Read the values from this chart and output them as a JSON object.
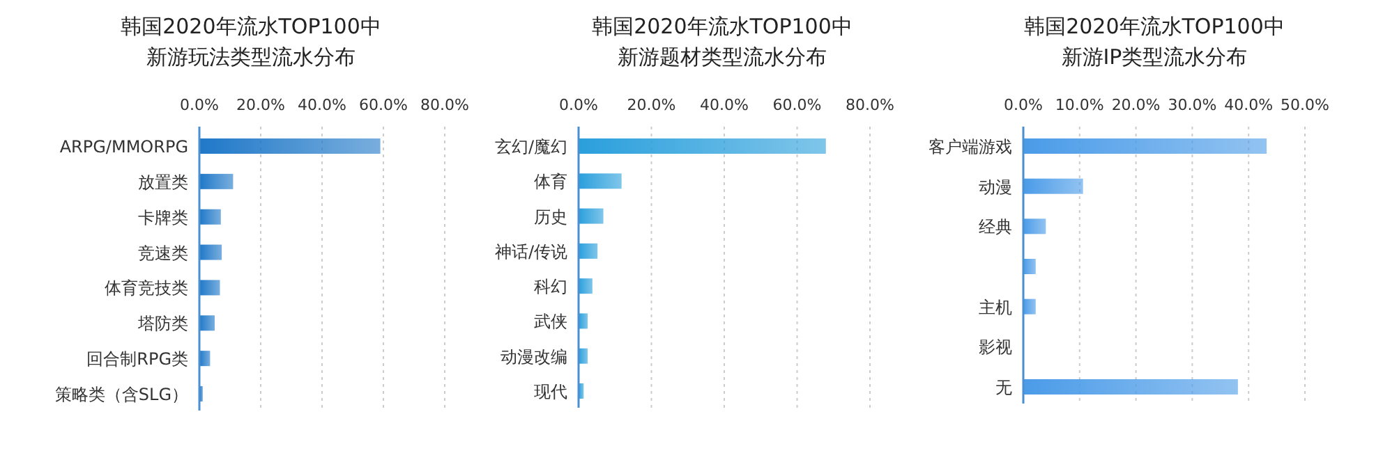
{
  "chart_data": [
    {
      "type": "bar",
      "orientation": "horizontal",
      "title": "韩国2020年流水TOP100中",
      "subtitle": "新游玩法类型流水分布",
      "categories": [
        "ARPG/MMORPG",
        "放置类",
        "卡牌类",
        "竞速类",
        "体育竞技类",
        "塔防类",
        "回合制RPG类",
        "策略类（含SLG）"
      ],
      "values": [
        59.0,
        11.0,
        7.0,
        7.3,
        6.7,
        5.0,
        3.5,
        1.1
      ],
      "color": "#1f78c8",
      "xlim": [
        0,
        80
      ],
      "xticks": [
        {
          "value": 0,
          "label": "0.0%"
        },
        {
          "value": 20,
          "label": "20.0%"
        },
        {
          "value": 40,
          "label": "40.0%"
        },
        {
          "value": 60,
          "label": "60.0%"
        },
        {
          "value": 80,
          "label": "80.0%"
        }
      ],
      "grid": "x"
    },
    {
      "type": "bar",
      "orientation": "horizontal",
      "title": "韩国2020年流水TOP100中",
      "subtitle": "新游题材类型流水分布",
      "categories": [
        "玄幻/魔幻",
        "体育",
        "历史",
        "神话/传说",
        "科幻",
        "武侠",
        "动漫改编",
        "现代"
      ],
      "values": [
        67.9,
        11.8,
        6.8,
        5.2,
        3.8,
        2.5,
        2.5,
        1.4
      ],
      "color": "#2a9fdc",
      "xlim": [
        0,
        80
      ],
      "xticks": [
        {
          "value": 0,
          "label": "0.0%"
        },
        {
          "value": 20,
          "label": "20.0%"
        },
        {
          "value": 40,
          "label": "40.0%"
        },
        {
          "value": 60,
          "label": "60.0%"
        },
        {
          "value": 80,
          "label": "80.0%"
        }
      ],
      "grid": "x"
    },
    {
      "type": "bar",
      "orientation": "horizontal",
      "title": "韩国2020年流水TOP100中",
      "subtitle": "新游IP类型流水分布",
      "categories": [
        "客户端游戏",
        "动漫",
        "经典",
        null,
        "主机",
        "影视",
        "无"
      ],
      "values": [
        43.2,
        10.6,
        4.0,
        2.2,
        2.2,
        0,
        38.1
      ],
      "color": "#4a9be8",
      "xlim": [
        0,
        50
      ],
      "xticks": [
        {
          "value": 0,
          "label": "0.0%"
        },
        {
          "value": 10,
          "label": "10.0%"
        },
        {
          "value": 20,
          "label": "20.0%"
        },
        {
          "value": 30,
          "label": "30.0%"
        },
        {
          "value": 40,
          "label": "40.0%"
        },
        {
          "value": 50,
          "label": "50.0%"
        }
      ],
      "grid": "x"
    }
  ]
}
